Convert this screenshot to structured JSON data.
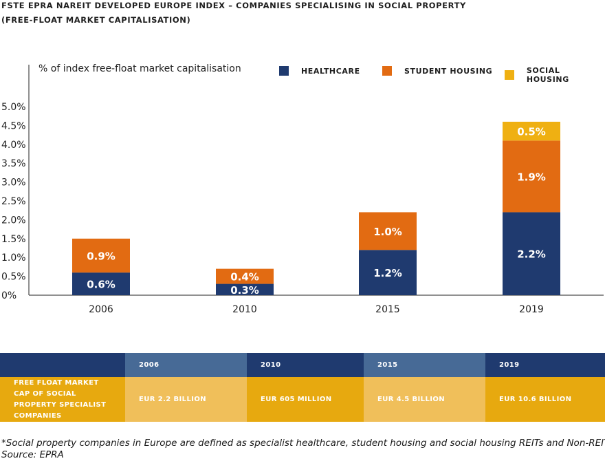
{
  "title": {
    "line1": "FSTE EPRA NAREIT DEVELOPED EUROPE INDEX – COMPANIES SPECIALISING IN SOCIAL PROPERTY",
    "line2": "(FREE-FLOAT MARKET CAPITALISATION)"
  },
  "colors": {
    "healthcare": "#1f3a6f",
    "student_housing": "#e26b12",
    "social_housing": "#efb012",
    "table_dark": "#1f3a6f",
    "table_mid": "#476a96",
    "table_gold": "#e7a90f",
    "table_light": "#f0bf5a"
  },
  "chart_data": {
    "type": "bar",
    "stacked": true,
    "ylabel": "% of index free-float market capitalisation",
    "ylim": [
      0,
      5.0
    ],
    "yticks": [
      "0%",
      "0.5%",
      "1.0%",
      "1.5%",
      "2.0%",
      "2.5%",
      "3.0%",
      "3.5%",
      "4.0%",
      "4.5%",
      "5.0%"
    ],
    "categories": [
      "2006",
      "2010",
      "2015",
      "2019"
    ],
    "legend_position": "top-right",
    "grid": false,
    "series": [
      {
        "name": "HEALTHCARE",
        "values": [
          0.6,
          0.3,
          1.2,
          2.2
        ],
        "labels": [
          "0.6%",
          "0.3%",
          "1.2%",
          "2.2%"
        ],
        "color": "#1f3a6f"
      },
      {
        "name": "STUDENT HOUSING",
        "values": [
          0.9,
          0.4,
          1.0,
          1.9
        ],
        "labels": [
          "0.9%",
          "0.4%",
          "1.0%",
          "1.9%"
        ],
        "color": "#e26b12"
      },
      {
        "name": "SOCIAL HOUSING",
        "values": [
          0,
          0,
          0,
          0.5
        ],
        "labels": [
          "",
          "",
          "",
          "0.5%"
        ],
        "color": "#efb012"
      }
    ]
  },
  "table": {
    "years": [
      "2006",
      "2010",
      "2015",
      "2019"
    ],
    "row_label": "FREE FLOAT MARKET CAP OF SOCIAL PROPERTY SPECIALIST COMPANIES",
    "values": [
      "EUR 2.2 BILLION",
      "EUR 605 MILLION",
      "EUR 4.5 BILLION",
      "EUR 10.6 BILLION"
    ]
  },
  "footnote": {
    "line1": "*Social property companies in Europe are defined as specialist healthcare, student housing and social housing REITs and Non-REITs.",
    "line2": "Source: EPRA"
  }
}
